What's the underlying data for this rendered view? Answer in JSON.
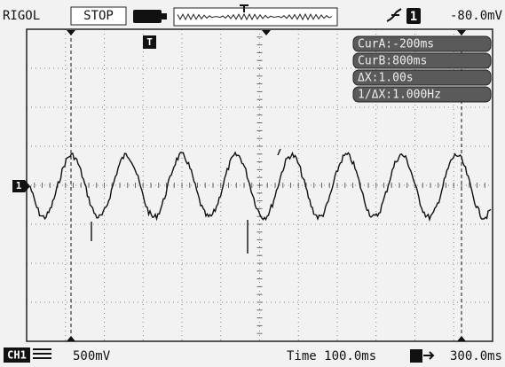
{
  "header": {
    "brand": "RIGOL",
    "status": "STOP",
    "trigger_source": "1",
    "trigger_level": "-80.0mV"
  },
  "markers": {
    "trigger_position": "T",
    "channel": "1"
  },
  "cursors": [
    "CurA:-200ms",
    "CurB:800ms",
    "ΔX:1.00s",
    "1/ΔX:1.000Hz"
  ],
  "footer": {
    "channel": "CH1",
    "scale": "500mV",
    "timebase": "Time 100.0ms",
    "trigger_offset": "300.0ms"
  }
}
